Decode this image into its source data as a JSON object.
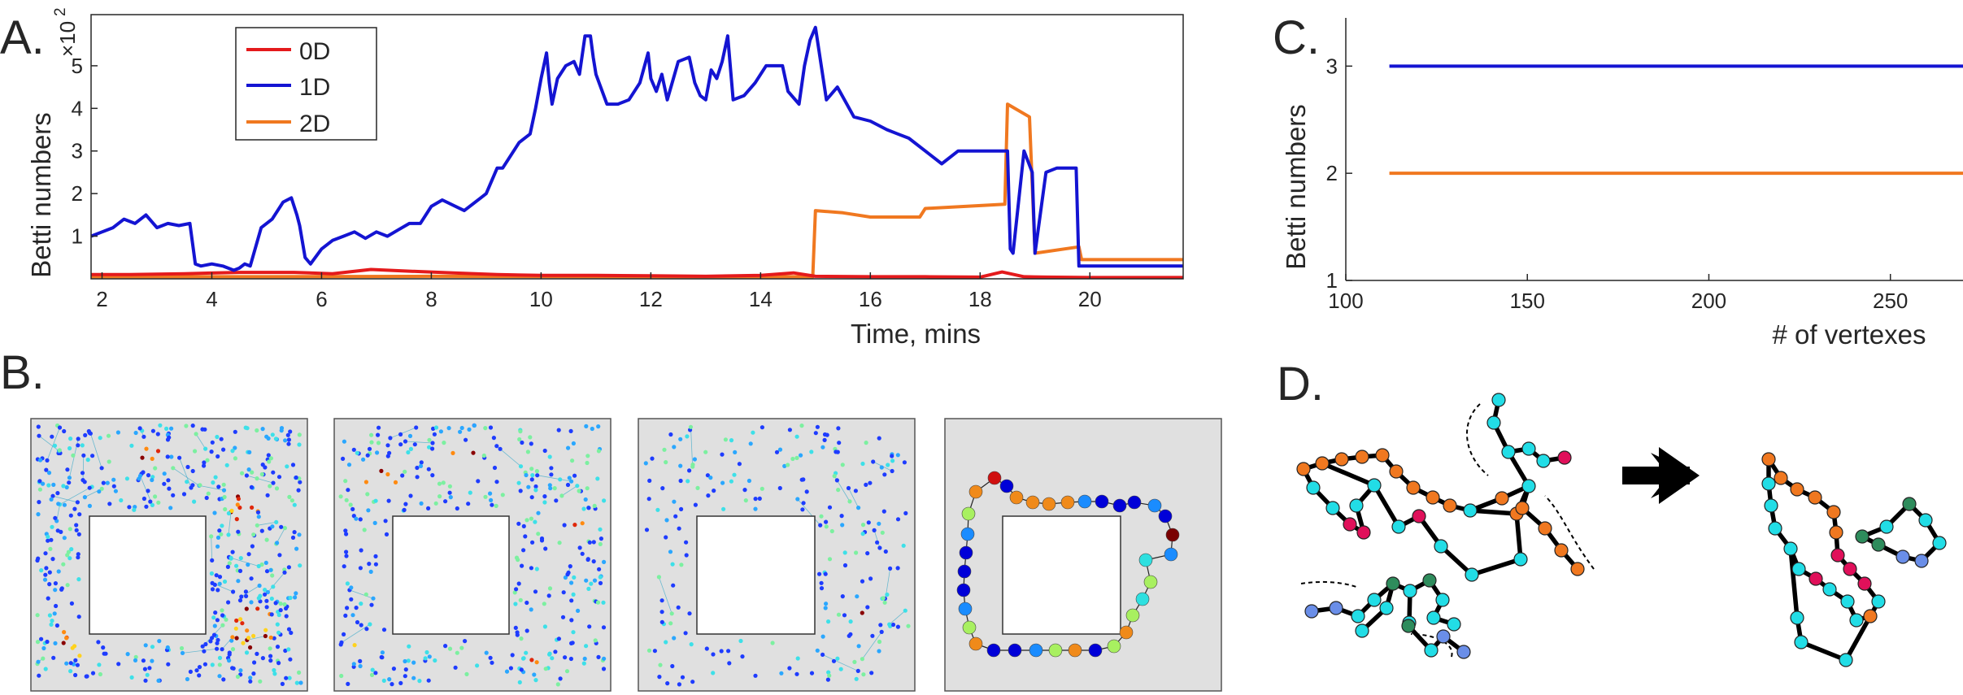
{
  "panels": {
    "a": "A.",
    "b": "B.",
    "c": "C.",
    "d": "D."
  },
  "chart_data": [
    {
      "type": "line",
      "panel": "A",
      "xlabel": "Time, mins",
      "ylabel": "Betti numbers",
      "y_multiplier": "×10",
      "y_multiplier_exp": "2",
      "xlim": [
        1.8,
        21.7
      ],
      "ylim": [
        0,
        6.2
      ],
      "xticks": [
        2,
        4,
        6,
        8,
        10,
        12,
        14,
        16,
        18,
        20
      ],
      "yticks": [
        1,
        2,
        3,
        4,
        5
      ],
      "legend": [
        "0D",
        "1D",
        "2D"
      ],
      "colors": [
        "#e41a1c",
        "#1414d2",
        "#f07820"
      ],
      "series": [
        {
          "name": "0D",
          "x": [
            1.8,
            2.5,
            3.5,
            4.5,
            5.5,
            6.2,
            6.9,
            7.6,
            8.4,
            9.2,
            10.0,
            11.0,
            12.0,
            13.0,
            14.0,
            14.6,
            15.0,
            16.0,
            17.0,
            18.0,
            18.4,
            18.8,
            19.2,
            20.0,
            21.0,
            21.7
          ],
          "values": [
            0.1,
            0.1,
            0.12,
            0.15,
            0.15,
            0.12,
            0.22,
            0.18,
            0.14,
            0.1,
            0.08,
            0.08,
            0.07,
            0.06,
            0.08,
            0.14,
            0.06,
            0.05,
            0.05,
            0.04,
            0.16,
            0.05,
            0.04,
            0.03,
            0.03,
            0.03
          ]
        },
        {
          "name": "1D",
          "x": [
            1.8,
            2.0,
            2.2,
            2.4,
            2.6,
            2.8,
            3.0,
            3.2,
            3.4,
            3.6,
            3.7,
            3.8,
            4.0,
            4.2,
            4.4,
            4.5,
            4.6,
            4.7,
            4.9,
            5.1,
            5.3,
            5.45,
            5.55,
            5.6,
            5.7,
            5.8,
            6.0,
            6.2,
            6.4,
            6.6,
            6.8,
            7.0,
            7.2,
            7.4,
            7.6,
            7.8,
            8.0,
            8.2,
            8.6,
            8.9,
            9.0,
            9.2,
            9.3,
            9.6,
            9.8,
            9.9,
            10.0,
            10.1,
            10.15,
            10.2,
            10.3,
            10.45,
            10.6,
            10.7,
            10.8,
            10.9,
            10.95,
            11.0,
            11.2,
            11.4,
            11.6,
            11.8,
            11.95,
            12.0,
            12.1,
            12.2,
            12.3,
            12.5,
            12.7,
            12.8,
            12.9,
            13.0,
            13.1,
            13.2,
            13.3,
            13.4,
            13.5,
            13.7,
            13.9,
            14.1,
            14.3,
            14.4,
            14.5,
            14.7,
            14.8,
            14.9,
            15.0,
            15.2,
            15.4,
            15.7,
            16.0,
            16.3,
            16.5,
            16.7,
            17.0,
            17.3,
            17.6,
            17.8,
            18.0,
            18.3,
            18.5,
            18.55,
            18.6,
            18.8,
            18.95,
            19.0,
            19.2,
            19.4,
            19.6,
            19.75,
            19.8,
            20.0,
            20.5,
            21.0,
            21.7
          ],
          "values": [
            1.0,
            1.1,
            1.2,
            1.4,
            1.3,
            1.5,
            1.2,
            1.3,
            1.25,
            1.3,
            0.35,
            0.3,
            0.35,
            0.3,
            0.2,
            0.25,
            0.35,
            0.3,
            1.2,
            1.4,
            1.8,
            1.9,
            1.5,
            1.25,
            0.5,
            0.35,
            0.7,
            0.9,
            1.0,
            1.1,
            0.95,
            1.1,
            1.0,
            1.15,
            1.3,
            1.3,
            1.7,
            1.85,
            1.6,
            1.9,
            2.0,
            2.6,
            2.6,
            3.2,
            3.4,
            4.0,
            4.7,
            5.3,
            4.6,
            4.1,
            4.7,
            5.0,
            5.1,
            4.8,
            5.7,
            5.7,
            5.2,
            4.8,
            4.1,
            4.1,
            4.2,
            4.6,
            5.3,
            4.7,
            4.4,
            4.8,
            4.2,
            5.1,
            5.2,
            4.6,
            4.3,
            4.2,
            4.9,
            4.7,
            5.1,
            5.7,
            4.2,
            4.3,
            4.6,
            5.0,
            5.0,
            5.0,
            4.4,
            4.1,
            5.0,
            5.6,
            5.9,
            4.2,
            4.5,
            3.8,
            3.7,
            3.5,
            3.4,
            3.3,
            3.0,
            2.7,
            3.0,
            3.0,
            3.0,
            3.0,
            3.0,
            0.7,
            0.6,
            3.0,
            2.5,
            0.6,
            2.5,
            2.6,
            2.6,
            2.6,
            0.3,
            0.3,
            0.3,
            0.3,
            0.3
          ]
        },
        {
          "name": "2D",
          "x": [
            1.8,
            5.0,
            8.0,
            12.0,
            14.95,
            15.0,
            15.5,
            16.0,
            16.9,
            17.0,
            18.45,
            18.5,
            18.9,
            19.0,
            19.8,
            19.85,
            21.7
          ],
          "values": [
            0.05,
            0.05,
            0.06,
            0.05,
            0.05,
            1.6,
            1.55,
            1.45,
            1.45,
            1.65,
            1.75,
            4.1,
            3.8,
            0.6,
            0.75,
            0.45,
            0.45
          ]
        }
      ]
    },
    {
      "type": "line",
      "panel": "C",
      "xlabel": "# of vertexes",
      "ylabel": "Betti numbers",
      "xlim": [
        100,
        270
      ],
      "ylim": [
        1,
        3.45
      ],
      "xticks": [
        100,
        150,
        200,
        250
      ],
      "yticks": [
        1,
        2,
        3
      ],
      "series": [
        {
          "name": "1D",
          "color": "#1414d2",
          "x": [
            112,
            270
          ],
          "values": [
            3,
            3
          ]
        },
        {
          "name": "2D",
          "color": "#f07820",
          "x": [
            112,
            270
          ],
          "values": [
            2,
            2
          ]
        }
      ]
    }
  ],
  "panel_b": {
    "maps": [
      "density map 1",
      "density map 2",
      "density map 3",
      "loop graph"
    ]
  },
  "panel_d": {
    "arrow": "transformation"
  }
}
